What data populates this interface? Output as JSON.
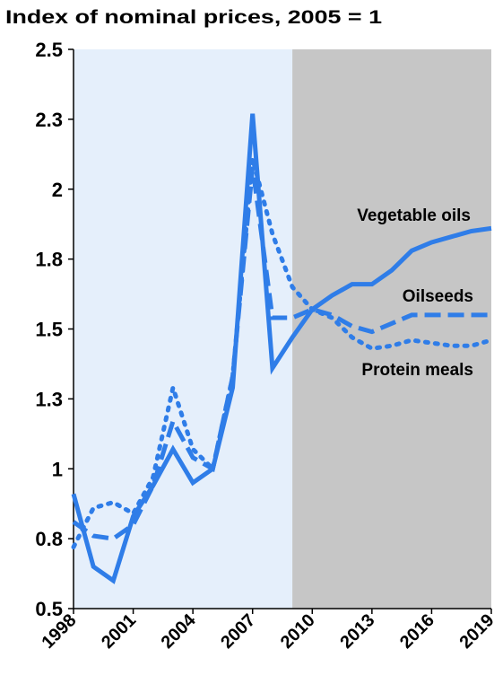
{
  "chart_data": {
    "type": "line",
    "title": "Index of nominal prices, 2005 = 1",
    "x": [
      1998,
      1999,
      2000,
      2001,
      2002,
      2003,
      2004,
      2005,
      2006,
      2007,
      2008,
      2009,
      2010,
      2011,
      2012,
      2013,
      2014,
      2015,
      2016,
      2017,
      2018,
      2019
    ],
    "series": [
      {
        "name": "Vegetable oils",
        "color": "#2f7de8",
        "style": "solid",
        "values": [
          0.91,
          0.65,
          0.6,
          0.83,
          0.94,
          1.07,
          0.95,
          1.0,
          1.29,
          2.27,
          1.36,
          1.47,
          1.57,
          1.62,
          1.66,
          1.66,
          1.71,
          1.78,
          1.81,
          1.83,
          1.85,
          1.86
        ]
      },
      {
        "name": "Oilseeds",
        "color": "#2f7de8",
        "style": "dashed",
        "values": [
          0.81,
          0.76,
          0.75,
          0.8,
          0.94,
          1.17,
          1.04,
          1.0,
          1.33,
          2.08,
          1.54,
          1.54,
          1.57,
          1.55,
          1.51,
          1.49,
          1.52,
          1.55,
          1.55,
          1.55,
          1.55,
          1.55
        ]
      },
      {
        "name": "Protein meals",
        "color": "#2f7de8",
        "style": "dotted",
        "values": [
          0.72,
          0.86,
          0.88,
          0.84,
          0.97,
          1.29,
          1.07,
          1.0,
          1.33,
          2.11,
          1.84,
          1.65,
          1.57,
          1.54,
          1.47,
          1.43,
          1.44,
          1.46,
          1.45,
          1.44,
          1.44,
          1.46
        ]
      }
    ],
    "xlim": [
      1998,
      2019
    ],
    "xticks": [
      1998,
      2001,
      2004,
      2007,
      2010,
      2013,
      2016,
      2019
    ],
    "ylim": [
      0.5,
      2.5
    ],
    "yticks": [
      0.5,
      {
        "value": 0.75,
        "label": "0.8"
      },
      1.0,
      {
        "value": 1.25,
        "label": "1.3"
      },
      1.5,
      {
        "value": 1.75,
        "label": "1.8"
      },
      2.0,
      {
        "value": 2.25,
        "label": "2.3"
      },
      2.5
    ],
    "shade": [
      {
        "from": 1998,
        "to": 2009,
        "color": "#e5effb"
      },
      {
        "from": 2009,
        "to": 2019,
        "color": "#c6c6c6"
      }
    ]
  }
}
